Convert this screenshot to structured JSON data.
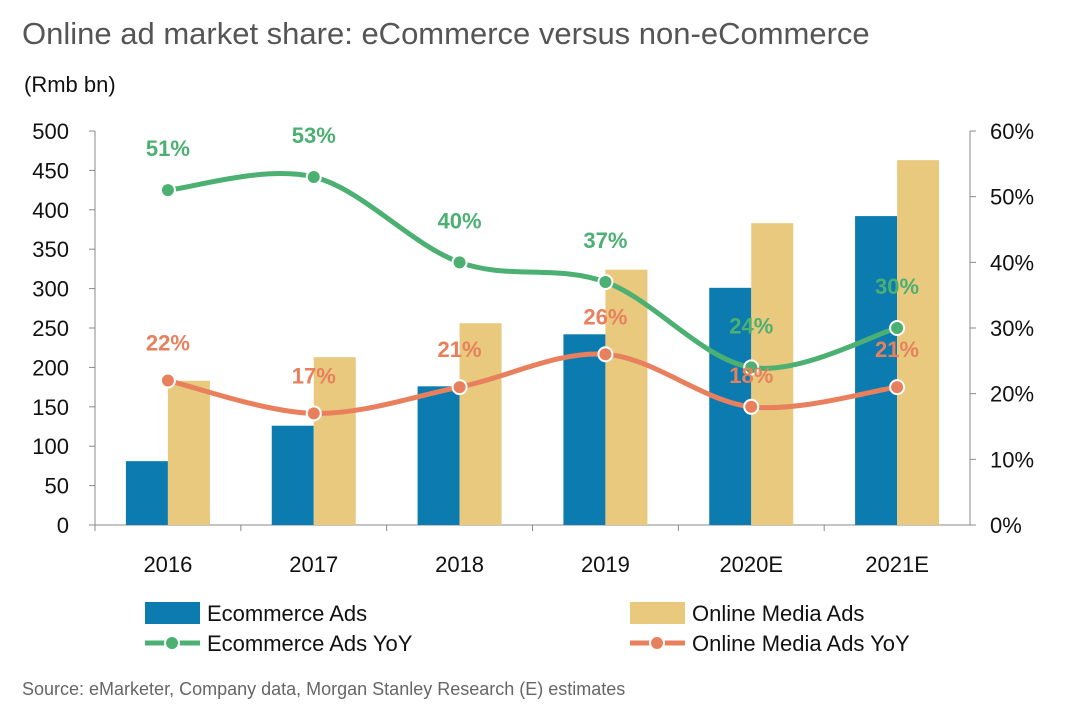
{
  "chart_data": {
    "type": "bar",
    "title": "Online ad market share: eCommerce versus non-eCommerce",
    "unit_label": "(Rmb bn)",
    "categories": [
      "2016",
      "2017",
      "2018",
      "2019",
      "2020E",
      "2021E"
    ],
    "left_axis": {
      "ylim": [
        0,
        500
      ],
      "ticks": [
        "0",
        "50",
        "100",
        "150",
        "200",
        "250",
        "300",
        "350",
        "400",
        "450",
        "500"
      ]
    },
    "right_axis": {
      "ylim": [
        0,
        60
      ],
      "ticks": [
        "0%",
        "10%",
        "20%",
        "30%",
        "40%",
        "50%",
        "60%"
      ]
    },
    "series": [
      {
        "name": "Ecommerce Ads",
        "type": "bar",
        "axis": "left",
        "color": "#0b7bb0",
        "values": [
          81,
          126,
          176,
          242,
          301,
          392
        ]
      },
      {
        "name": "Online Media Ads",
        "type": "bar",
        "axis": "left",
        "color": "#e8c97e",
        "values": [
          183,
          213,
          256,
          324,
          383,
          463
        ]
      },
      {
        "name": "Ecommerce Ads YoY",
        "type": "line",
        "axis": "right",
        "color": "#4bb071",
        "values": [
          51,
          53,
          40,
          37,
          24,
          30
        ],
        "labels": [
          "51%",
          "53%",
          "40%",
          "37%",
          "24%",
          "30%"
        ]
      },
      {
        "name": "Online Media Ads YoY",
        "type": "line",
        "axis": "right",
        "color": "#e8805e",
        "values": [
          22,
          17,
          21,
          26,
          18,
          21
        ],
        "labels": [
          "22%",
          "17%",
          "21%",
          "26%",
          "18%",
          "21%"
        ]
      }
    ],
    "grid": false,
    "legend": "bottom",
    "source": "Source: eMarketer, Company data, Morgan Stanley Research (E) estimates"
  }
}
